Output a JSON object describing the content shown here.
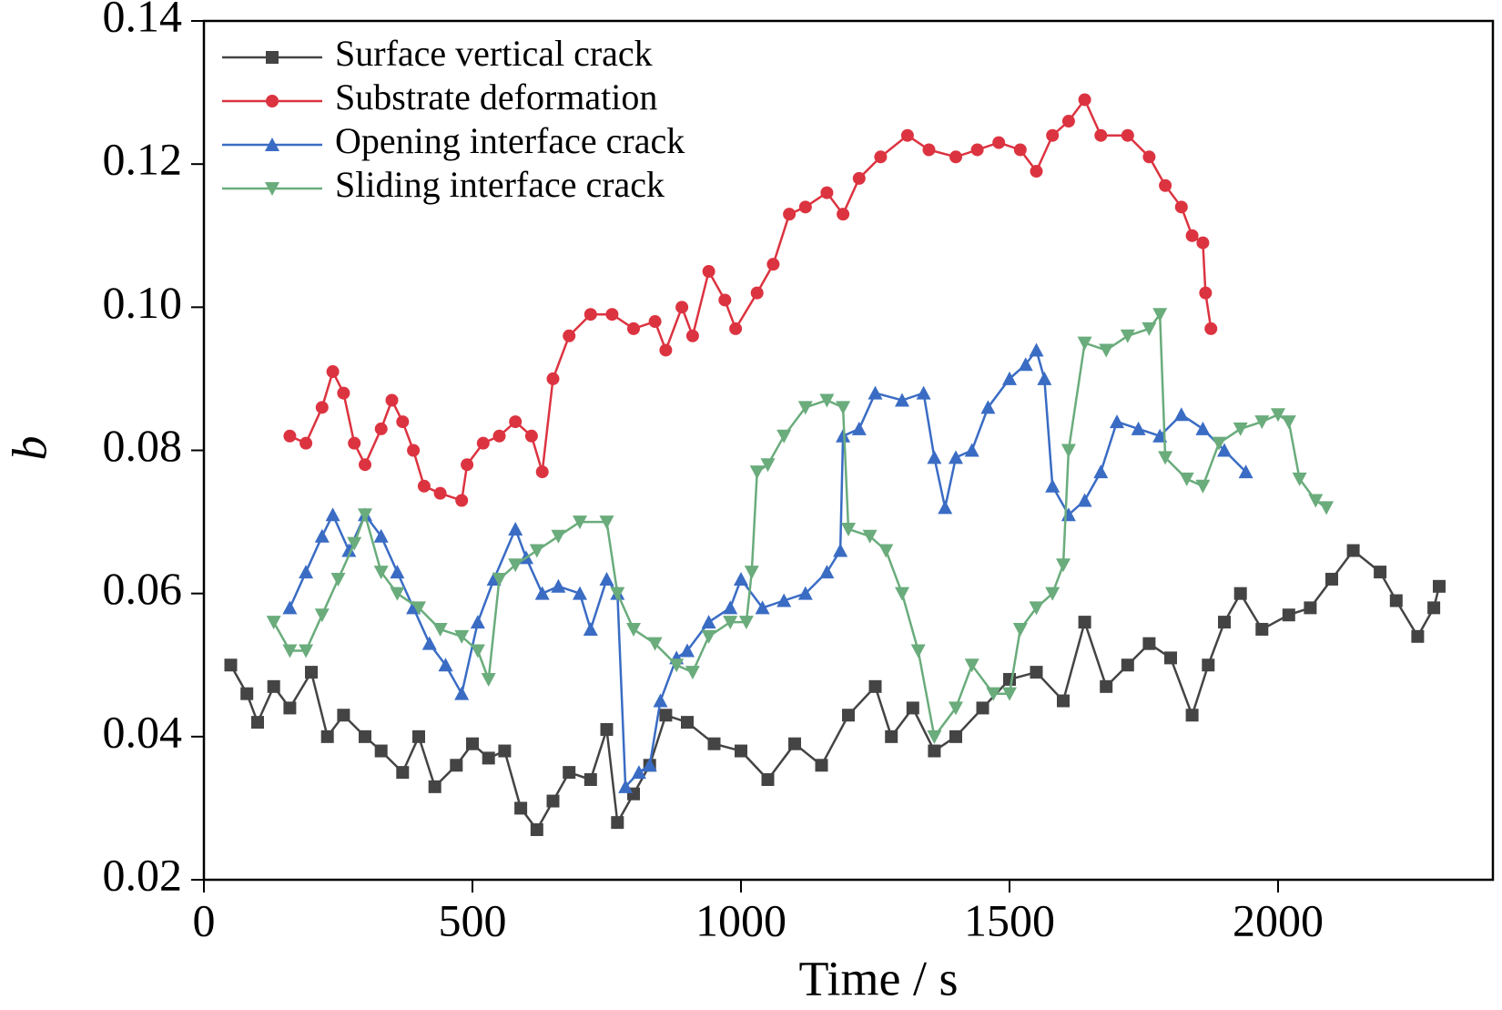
{
  "chart_data": {
    "type": "line",
    "xlabel": "Time / s",
    "ylabel": "b",
    "xlim": [
      0,
      2400
    ],
    "ylim": [
      0.02,
      0.14
    ],
    "xticks": [
      0,
      500,
      1000,
      1500,
      2000
    ],
    "yticks": [
      0.02,
      0.04,
      0.06,
      0.08,
      {
        "value": 0.1,
        "label": "0.10"
      },
      0.12,
      0.14
    ],
    "legend": "upper left",
    "series": [
      {
        "name": "Surface vertical crack",
        "color": "#444444",
        "marker": "square",
        "x": [
          50,
          80,
          100,
          130,
          160,
          200,
          230,
          260,
          300,
          330,
          370,
          400,
          430,
          470,
          500,
          530,
          560,
          590,
          620,
          650,
          680,
          720,
          750,
          770,
          800,
          830,
          860,
          900,
          950,
          1000,
          1050,
          1100,
          1150,
          1200,
          1250,
          1280,
          1320,
          1360,
          1400,
          1450,
          1500,
          1550,
          1600,
          1640,
          1680,
          1720,
          1760,
          1800,
          1840,
          1870,
          1900,
          1930,
          1970,
          2020,
          2060,
          2100,
          2140,
          2190,
          2220,
          2260,
          2290,
          2300
        ],
        "values": [
          0.05,
          0.046,
          0.042,
          0.047,
          0.044,
          0.049,
          0.04,
          0.043,
          0.04,
          0.038,
          0.035,
          0.04,
          0.033,
          0.036,
          0.039,
          0.037,
          0.038,
          0.03,
          0.027,
          0.031,
          0.035,
          0.034,
          0.041,
          0.028,
          0.032,
          0.036,
          0.043,
          0.042,
          0.039,
          0.038,
          0.034,
          0.039,
          0.036,
          0.043,
          0.047,
          0.04,
          0.044,
          0.038,
          0.04,
          0.044,
          0.048,
          0.049,
          0.045,
          0.056,
          0.047,
          0.05,
          0.053,
          0.051,
          0.043,
          0.05,
          0.056,
          0.06,
          0.055,
          0.057,
          0.058,
          0.062,
          0.066,
          0.063,
          0.059,
          0.054,
          0.058,
          0.061
        ]
      },
      {
        "name": "Substrate deformation",
        "color": "#dc3340",
        "marker": "circle",
        "x": [
          160,
          190,
          220,
          240,
          260,
          280,
          300,
          330,
          350,
          370,
          390,
          410,
          440,
          480,
          490,
          520,
          550,
          580,
          610,
          630,
          650,
          680,
          720,
          760,
          800,
          840,
          860,
          890,
          910,
          940,
          970,
          990,
          1030,
          1060,
          1090,
          1120,
          1160,
          1190,
          1220,
          1260,
          1310,
          1350,
          1400,
          1440,
          1480,
          1520,
          1550,
          1580,
          1610,
          1640,
          1670,
          1720,
          1760,
          1790,
          1820,
          1840,
          1860,
          1865,
          1875
        ],
        "values": [
          0.082,
          0.081,
          0.086,
          0.091,
          0.088,
          0.081,
          0.078,
          0.083,
          0.087,
          0.084,
          0.08,
          0.075,
          0.074,
          0.073,
          0.078,
          0.081,
          0.082,
          0.084,
          0.082,
          0.077,
          0.09,
          0.096,
          0.099,
          0.099,
          0.097,
          0.098,
          0.094,
          0.1,
          0.096,
          0.105,
          0.101,
          0.097,
          0.102,
          0.106,
          0.113,
          0.114,
          0.116,
          0.113,
          0.118,
          0.121,
          0.124,
          0.122,
          0.121,
          0.122,
          0.123,
          0.122,
          0.119,
          0.124,
          0.126,
          0.129,
          0.124,
          0.124,
          0.121,
          0.117,
          0.114,
          0.11,
          0.109,
          0.102,
          0.097
        ]
      },
      {
        "name": "Opening interface crack",
        "color": "#3a6cc4",
        "marker": "triangle-up",
        "x": [
          160,
          190,
          220,
          240,
          270,
          300,
          330,
          360,
          390,
          420,
          450,
          480,
          510,
          540,
          580,
          600,
          630,
          660,
          700,
          720,
          750,
          770,
          785,
          810,
          830,
          850,
          880,
          900,
          940,
          980,
          1000,
          1040,
          1080,
          1120,
          1160,
          1185,
          1190,
          1220,
          1250,
          1300,
          1340,
          1360,
          1380,
          1400,
          1430,
          1460,
          1500,
          1530,
          1550,
          1565,
          1580,
          1610,
          1640,
          1670,
          1700,
          1740,
          1780,
          1820,
          1860,
          1900,
          1940
        ],
        "values": [
          0.058,
          0.063,
          0.068,
          0.071,
          0.066,
          0.071,
          0.068,
          0.063,
          0.058,
          0.053,
          0.05,
          0.046,
          0.056,
          0.062,
          0.069,
          0.065,
          0.06,
          0.061,
          0.06,
          0.055,
          0.062,
          0.06,
          0.033,
          0.035,
          0.036,
          0.045,
          0.051,
          0.052,
          0.056,
          0.058,
          0.062,
          0.058,
          0.059,
          0.06,
          0.063,
          0.066,
          0.082,
          0.083,
          0.088,
          0.087,
          0.088,
          0.079,
          0.072,
          0.079,
          0.08,
          0.086,
          0.09,
          0.092,
          0.094,
          0.09,
          0.075,
          0.071,
          0.073,
          0.077,
          0.084,
          0.083,
          0.082,
          0.085,
          0.083,
          0.08,
          0.077
        ]
      },
      {
        "name": "Sliding interface crack",
        "color": "#6aac7c",
        "marker": "triangle-down",
        "x": [
          130,
          160,
          190,
          220,
          250,
          280,
          300,
          330,
          360,
          400,
          440,
          480,
          510,
          530,
          550,
          580,
          620,
          660,
          700,
          750,
          770,
          800,
          840,
          880,
          910,
          940,
          980,
          1010,
          1020,
          1030,
          1050,
          1080,
          1120,
          1160,
          1190,
          1200,
          1240,
          1270,
          1300,
          1330,
          1360,
          1400,
          1430,
          1470,
          1500,
          1520,
          1550,
          1580,
          1600,
          1610,
          1640,
          1680,
          1720,
          1760,
          1780,
          1790,
          1830,
          1860,
          1890,
          1930,
          1970,
          2000,
          2020,
          2040,
          2070,
          2090
        ],
        "values": [
          0.056,
          0.052,
          0.052,
          0.057,
          0.062,
          0.067,
          0.071,
          0.063,
          0.06,
          0.058,
          0.055,
          0.054,
          0.052,
          0.048,
          0.062,
          0.064,
          0.066,
          0.068,
          0.07,
          0.07,
          0.06,
          0.055,
          0.053,
          0.05,
          0.049,
          0.054,
          0.056,
          0.056,
          0.063,
          0.077,
          0.078,
          0.082,
          0.086,
          0.087,
          0.086,
          0.069,
          0.068,
          0.066,
          0.06,
          0.052,
          0.04,
          0.044,
          0.05,
          0.046,
          0.046,
          0.055,
          0.058,
          0.06,
          0.064,
          0.08,
          0.095,
          0.094,
          0.096,
          0.097,
          0.099,
          0.079,
          0.076,
          0.075,
          0.081,
          0.083,
          0.084,
          0.085,
          0.084,
          0.076,
          0.073,
          0.072
        ]
      }
    ]
  }
}
